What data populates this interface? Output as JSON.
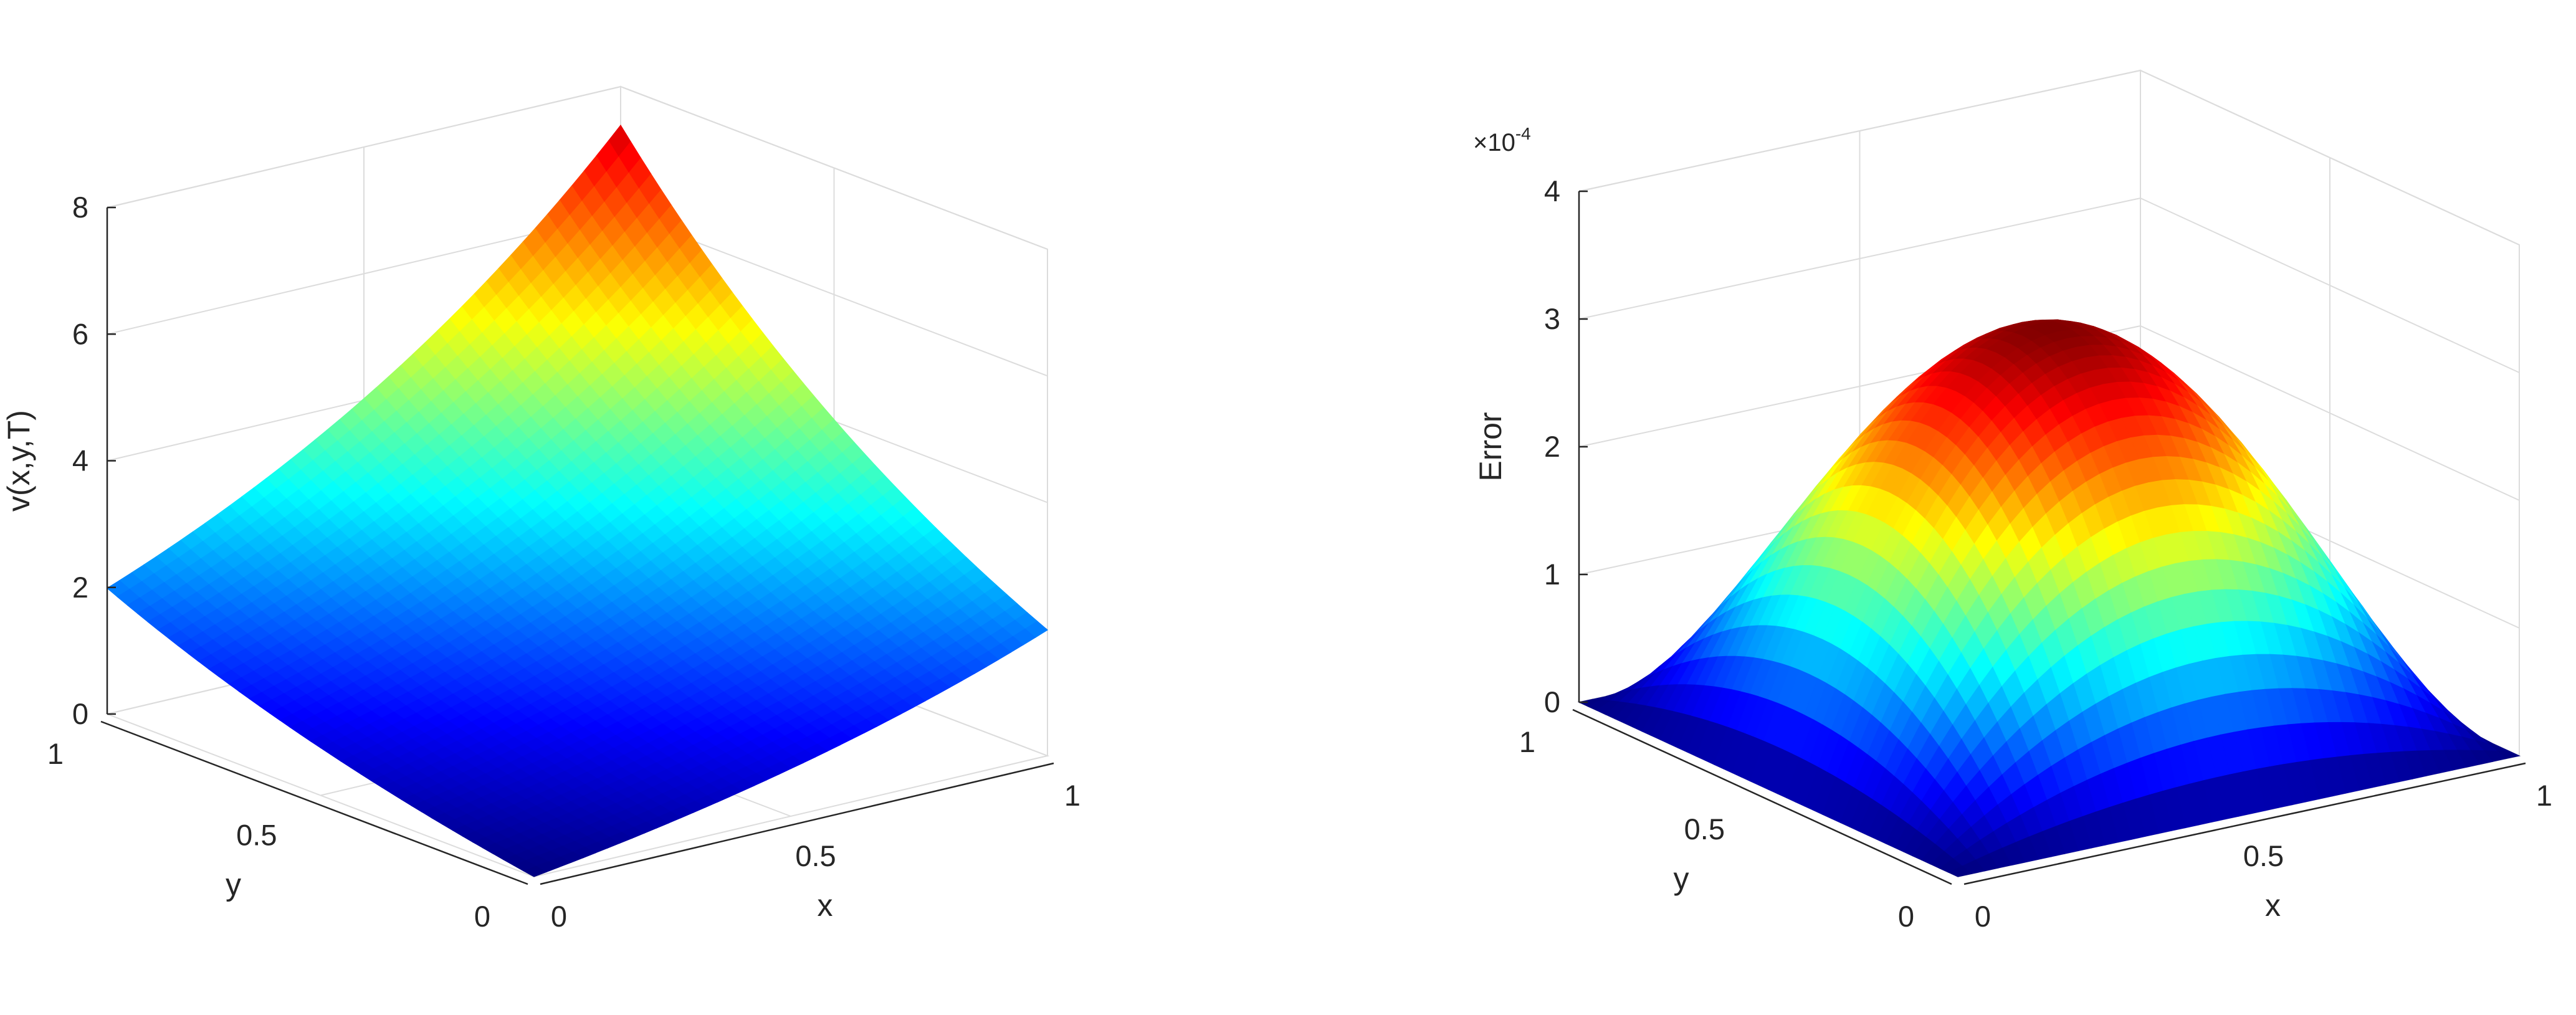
{
  "chart_data": [
    {
      "type": "surface",
      "title": "",
      "xlabel": "x",
      "ylabel": "y",
      "zlabel": "v(x,y,T)",
      "xlim": [
        0,
        1
      ],
      "ylim": [
        0,
        1
      ],
      "zlim": [
        0,
        8
      ],
      "xticks": [
        "0",
        "0.5",
        "1"
      ],
      "yticks": [
        "0",
        "0.5",
        "1"
      ],
      "zticks": [
        "0",
        "2",
        "4",
        "6",
        "8"
      ],
      "corner_values": [
        {
          "x": 0,
          "y": 0,
          "z": 0.0
        },
        {
          "x": 1,
          "y": 0,
          "z": 2.72
        },
        {
          "x": 0,
          "y": 1,
          "z": 2.72
        },
        {
          "x": 1,
          "y": 1,
          "z": 7.39
        }
      ],
      "colormap": "jet",
      "grid": true
    },
    {
      "type": "surface",
      "title": "",
      "xlabel": "x",
      "ylabel": "y",
      "zlabel": "Error",
      "xlim": [
        0,
        1
      ],
      "ylim": [
        0,
        1
      ],
      "zlim": [
        0,
        4
      ],
      "zscale_label": "×10",
      "zscale_exponent": "-4",
      "xticks": [
        "0",
        "0.5",
        "1"
      ],
      "yticks": [
        "0",
        "0.5",
        "1"
      ],
      "zticks": [
        "0",
        "1",
        "2",
        "3",
        "4"
      ],
      "peak": {
        "x": 0.5,
        "y": 0.5,
        "z": 3.15
      },
      "boundary_value": 0,
      "colormap": "jet",
      "grid": true
    }
  ]
}
